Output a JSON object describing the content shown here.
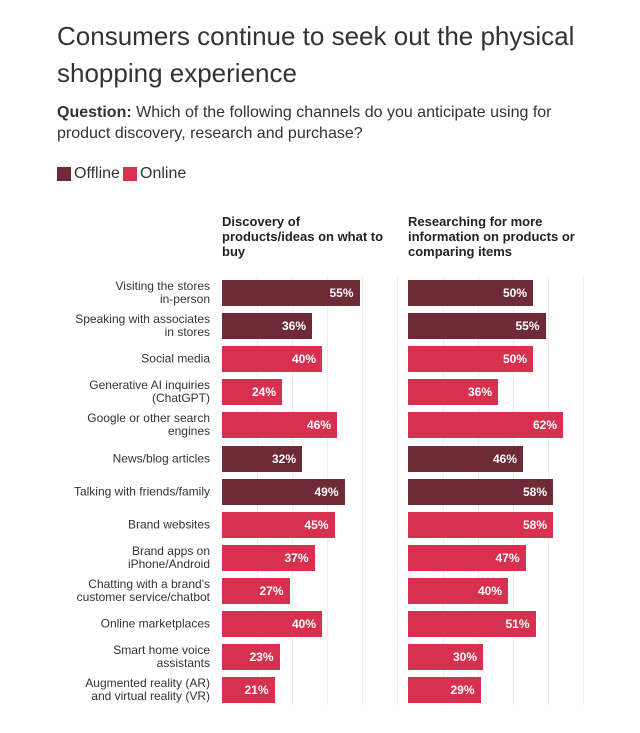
{
  "title": "Consumers continue to seek out the physical shopping experience",
  "question_label": "Question:",
  "question": "Which of the following channels do you anticipate using for product discovery, research and purchase?",
  "chart_data": {
    "type": "bar",
    "orientation": "horizontal",
    "xlim": [
      0,
      70
    ],
    "panels": [
      "Discovery of products/ideas on what to buy",
      "Researching for more information on products or comparing items"
    ],
    "categories": [
      "Visiting the stores\nin-person",
      "Speaking with associates\nin stores",
      "Social media",
      "Generative AI inquiries\n(ChatGPT)",
      "Google or other search\nengines",
      "News/blog articles",
      "Talking with friends/family",
      "Brand websites",
      "Brand apps on\niPhone/Android",
      "Chatting with a brand's\ncustomer service/chatbot",
      "Online marketplaces",
      "Smart home voice\nassistants",
      "Augmented reality (AR)\nand virtual reality (VR)"
    ],
    "series": [
      {
        "name": "Offline",
        "color": "#6e2a35",
        "values": [
          [
            55,
            36,
            null,
            null,
            null,
            32,
            49,
            null,
            null,
            null,
            null,
            null,
            null
          ],
          [
            50,
            55,
            null,
            null,
            null,
            46,
            58,
            null,
            null,
            null,
            null,
            null,
            null
          ]
        ],
        "value_labels": [
          [
            "55%",
            "36%",
            null,
            null,
            null,
            "32%",
            "49%",
            null,
            null,
            null,
            null,
            null,
            null
          ],
          [
            "50%",
            "55%",
            null,
            null,
            null,
            "46%",
            "58%",
            null,
            null,
            null,
            null,
            null,
            null
          ]
        ]
      },
      {
        "name": "Online",
        "color": "#d8304f",
        "values": [
          [
            null,
            null,
            40,
            24,
            46,
            null,
            null,
            45,
            37,
            27,
            40,
            23,
            21
          ],
          [
            null,
            null,
            50,
            36,
            62,
            null,
            null,
            58,
            47,
            40,
            51,
            30,
            29
          ]
        ],
        "value_labels": [
          [
            null,
            null,
            "40%",
            "24%",
            "46%",
            null,
            null,
            "45%",
            "37%",
            "27%",
            "40%",
            "23%",
            "21%"
          ],
          [
            null,
            null,
            "50%",
            "36%",
            "62%",
            null,
            null,
            "58%",
            "47%",
            "40%",
            "51%",
            "30%",
            "29%"
          ]
        ]
      }
    ]
  }
}
